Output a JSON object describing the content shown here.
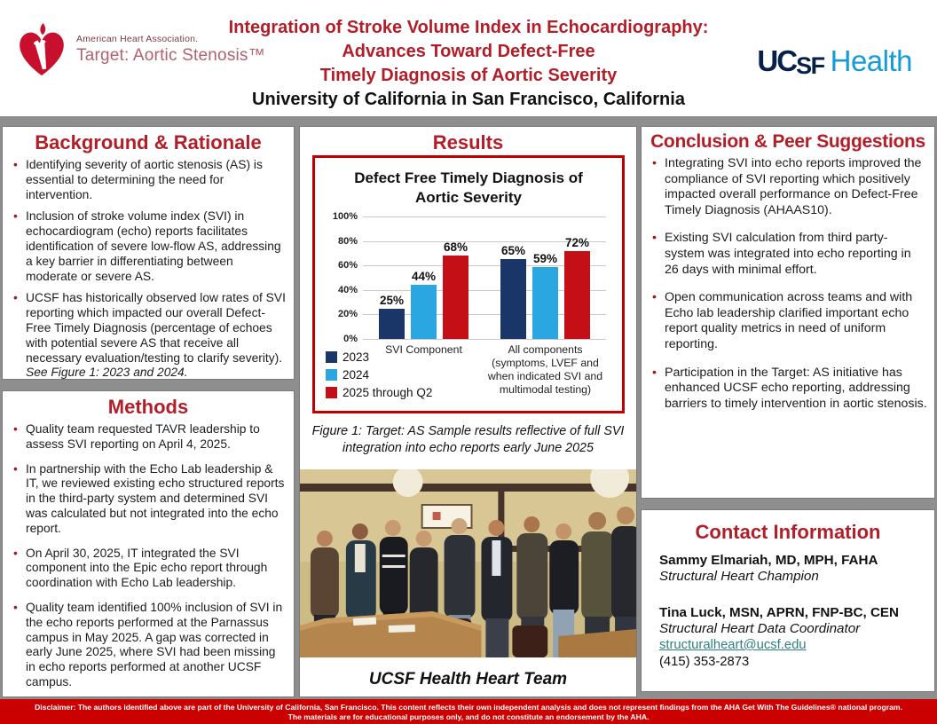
{
  "header": {
    "aha": {
      "org": "American Heart Association.",
      "program": "Target: Aortic Stenosis™"
    },
    "title_line1": "Integration of Stroke Volume Index in Echocardiography:",
    "title_line2": "Advances Toward Defect-Free",
    "title_line3": "Timely Diagnosis of Aortic Severity",
    "subtitle": "University of California in San Francisco, California",
    "ucsf": {
      "mark_a": "UC",
      "mark_b": "SF",
      "word": "Health"
    }
  },
  "sections": {
    "background": {
      "heading": "Background & Rationale",
      "bullets": [
        "Identifying severity of aortic stenosis (AS) is essential to determining the need for intervention.",
        "Inclusion of stroke volume index (SVI) in echocardiogram (echo) reports facilitates identification of severe low-flow AS, addressing a key barrier in differentiating between moderate or severe AS.",
        {
          "text": "UCSF has historically observed low rates of SVI reporting which impacted our overall Defect- Free Timely Diagnosis (percentage of echoes with potential severe AS that receive all necessary evaluation/testing to clarify severity).",
          "italic": "See Figure 1: 2023 and 2024."
        }
      ]
    },
    "methods": {
      "heading": "Methods",
      "bullets": [
        "Quality team requested TAVR leadership to assess SVI reporting on April 4, 2025.",
        "In partnership with the Echo Lab leadership & IT, we reviewed existing echo structured reports in the third-party system and determined SVI was calculated but not integrated into the echo report.",
        "On April 30, 2025, IT integrated the SVI component into the Epic echo report through coordination with Echo Lab leadership.",
        "Quality team identified 100% inclusion of SVI in the echo reports performed at the Parnassus campus in May 2025. A gap was corrected in early June 2025, where SVI had been missing in echo reports performed at another UCSF campus."
      ]
    },
    "results": {
      "heading": "Results",
      "caption": "Figure 1: Target: AS Sample results reflective of full SVI integration into echo reports early June 2025",
      "photo_caption": "UCSF Health Heart Team"
    },
    "conclusion": {
      "heading": "Conclusion & Peer Suggestions",
      "bullets": [
        "Integrating SVI into echo reports improved the compliance of SVI reporting which positively impacted overall performance on Defect-Free Timely Diagnosis (AHAAS10).",
        "Existing SVI calculation from third party-system was integrated into echo reporting in 26 days with minimal effort.",
        "Open communication across teams and with Echo lab leadership clarified important echo report quality metrics in need of uniform reporting.",
        "Participation in the Target: AS initiative has enhanced UCSF echo reporting, addressing barriers to timely intervention in aortic stenosis."
      ]
    },
    "contact": {
      "heading": "Contact Information",
      "people": [
        {
          "name": "Sammy Elmariah, MD, MPH, FAHA",
          "title": "Structural Heart Champion"
        },
        {
          "name": "Tina Luck, MSN, APRN, FNP-BC, CEN",
          "title": "Structural Heart Data Coordinator",
          "email": "structuralheart@ucsf.edu",
          "phone": "(415) 353-2873"
        }
      ]
    }
  },
  "chart_data": {
    "type": "bar",
    "title": "Defect Free Timely Diagnosis of Aortic Severity",
    "categories": [
      "SVI Component",
      "All components (symptoms, LVEF and when indicated SVI and multimodal testing)"
    ],
    "series": [
      {
        "name": "2023",
        "color": "#1a3668",
        "values": [
          25,
          65
        ]
      },
      {
        "name": "2024",
        "color": "#2aa7e0",
        "values": [
          44,
          59
        ]
      },
      {
        "name": "2025 through Q2",
        "color": "#c40f17",
        "values": [
          68,
          72
        ]
      }
    ],
    "ylim": [
      0,
      100
    ],
    "yticks": [
      "0%",
      "20%",
      "40%",
      "60%",
      "80%",
      "100%"
    ],
    "value_suffix": "%",
    "grid": true,
    "legend_position": "bottom-left"
  },
  "footer": {
    "line1": "Disclaimer: The authors identified above are part of the University of California, San Francisco. This content reflects their own independent analysis and does not represent findings from the AHA Get With The Guidelines® national program.",
    "line2": "The materials are for educational purposes only, and do not constitute an endorsement by the AHA."
  },
  "colors": {
    "accent_red": "#b21e28",
    "footer_red": "#cb0000",
    "chart_border_red": "#c00000",
    "bar_navy": "#1a3668",
    "bar_blue": "#2aa7e0",
    "bar_red": "#c40f17",
    "page_gray": "#8e8e8e",
    "link_teal": "#2e7f7f",
    "ucsf_navy": "#052049",
    "ucsf_blue": "#149bd8",
    "aha_red": "#c8102e"
  }
}
